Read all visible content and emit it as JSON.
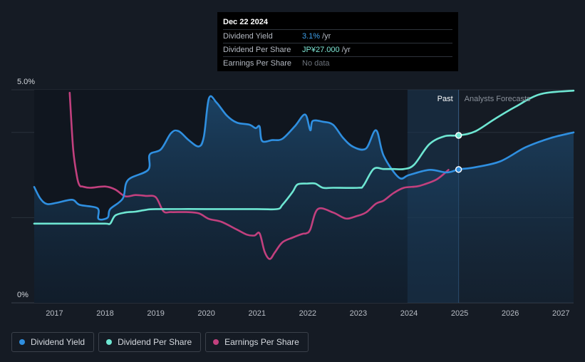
{
  "tooltip": {
    "date": "Dec 22 2024",
    "rows": [
      {
        "label": "Dividend Yield",
        "value": "3.1%",
        "unit": "/yr"
      },
      {
        "label": "Dividend Per Share",
        "value": "JP¥27.000",
        "unit": "/yr"
      },
      {
        "label": "Earnings Per Share",
        "value": "No data",
        "unit": ""
      }
    ]
  },
  "legend": [
    {
      "label": "Dividend Yield",
      "color": "#2f8fe0"
    },
    {
      "label": "Dividend Per Share",
      "color": "#6ee6d2"
    },
    {
      "label": "Earnings Per Share",
      "color": "#c2407e"
    }
  ],
  "chart_data": {
    "type": "line",
    "y_label_top": "5.0%",
    "y_label_bottom": "0%",
    "ylim": [
      0,
      5.0
    ],
    "xlim": [
      2016.6,
      2027.25
    ],
    "x_ticks": [
      "2017",
      "2018",
      "2019",
      "2020",
      "2021",
      "2022",
      "2023",
      "2024",
      "2025",
      "2026",
      "2027"
    ],
    "past_label": "Past",
    "forecast_label": "Analysts Forecasts",
    "forecast_start": 2023.97,
    "past_end": 2024.98,
    "series": [
      {
        "name": "Dividend Yield",
        "color": "#2f8fe0",
        "x": [
          2016.6,
          2016.72,
          2016.85,
          2017.05,
          2017.35,
          2017.5,
          2017.85,
          2017.87,
          2018.05,
          2018.1,
          2018.35,
          2018.45,
          2018.85,
          2018.88,
          2019.1,
          2019.3,
          2019.45,
          2019.65,
          2019.85,
          2019.95,
          2020.05,
          2020.2,
          2020.4,
          2020.6,
          2020.85,
          2020.97,
          2021.05,
          2021.1,
          2021.3,
          2021.5,
          2021.75,
          2021.95,
          2022.05,
          2022.1,
          2022.3,
          2022.5,
          2022.7,
          2022.9,
          2023.15,
          2023.35,
          2023.5,
          2023.8,
          2024.0,
          2024.4,
          2024.75,
          2024.98,
          2025.3,
          2025.8,
          2026.3,
          2026.8,
          2027.25
        ],
        "y": [
          2.72,
          2.45,
          2.32,
          2.35,
          2.42,
          2.3,
          2.22,
          1.97,
          2.0,
          2.2,
          2.45,
          2.88,
          3.12,
          3.48,
          3.6,
          3.98,
          4.03,
          3.82,
          3.67,
          3.9,
          4.8,
          4.7,
          4.4,
          4.23,
          4.18,
          4.1,
          4.14,
          3.8,
          3.82,
          3.85,
          4.15,
          4.42,
          4.05,
          4.27,
          4.25,
          4.18,
          3.87,
          3.66,
          3.62,
          4.05,
          3.45,
          2.94,
          3.0,
          3.12,
          3.06,
          3.13,
          3.18,
          3.32,
          3.65,
          3.87,
          4.0
        ]
      },
      {
        "name": "Dividend Per Share",
        "color": "#6ee6d2",
        "x": [
          2016.6,
          2017.0,
          2017.5,
          2018.0,
          2018.1,
          2018.2,
          2018.4,
          2018.6,
          2018.8,
          2019.0,
          2020.0,
          2021.0,
          2021.4,
          2021.5,
          2021.7,
          2021.8,
          2022.0,
          2022.15,
          2022.3,
          2022.5,
          2023.0,
          2023.1,
          2023.3,
          2023.5,
          2023.7,
          2023.9,
          2024.1,
          2024.4,
          2024.7,
          2024.98,
          2025.3,
          2025.7,
          2026.1,
          2026.6,
          2027.25
        ],
        "y": [
          1.86,
          1.86,
          1.86,
          1.86,
          1.86,
          2.05,
          2.12,
          2.14,
          2.18,
          2.2,
          2.2,
          2.2,
          2.2,
          2.3,
          2.6,
          2.78,
          2.8,
          2.8,
          2.7,
          2.7,
          2.7,
          2.75,
          3.14,
          3.14,
          3.14,
          3.14,
          3.24,
          3.72,
          3.91,
          3.93,
          4.02,
          4.32,
          4.6,
          4.9,
          4.98
        ]
      },
      {
        "name": "Earnings Per Share",
        "color": "#c2407e",
        "x": [
          2017.3,
          2017.37,
          2017.45,
          2017.5,
          2017.55,
          2017.7,
          2018.0,
          2018.2,
          2018.4,
          2018.6,
          2018.8,
          2019.0,
          2019.15,
          2019.3,
          2019.6,
          2019.85,
          2020.05,
          2020.3,
          2020.6,
          2020.8,
          2020.95,
          2021.05,
          2021.15,
          2021.25,
          2021.35,
          2021.5,
          2021.7,
          2021.9,
          2021.97,
          2022.05,
          2022.2,
          2022.5,
          2022.75,
          2022.95,
          2023.15,
          2023.35,
          2023.5,
          2023.7,
          2023.9,
          2024.15,
          2024.3,
          2024.55,
          2024.78
        ],
        "y": [
          4.93,
          3.6,
          2.93,
          2.75,
          2.73,
          2.7,
          2.73,
          2.66,
          2.5,
          2.53,
          2.51,
          2.48,
          2.15,
          2.13,
          2.13,
          2.1,
          1.97,
          1.9,
          1.72,
          1.6,
          1.58,
          1.63,
          1.2,
          1.03,
          1.18,
          1.42,
          1.53,
          1.62,
          1.63,
          1.72,
          2.2,
          2.12,
          1.98,
          2.03,
          2.12,
          2.33,
          2.4,
          2.58,
          2.7,
          2.73,
          2.78,
          2.9,
          3.12
        ]
      }
    ],
    "markers": [
      {
        "series": "Dividend Per Share",
        "x": 2024.98,
        "y": 3.93
      },
      {
        "series": "Dividend Yield",
        "x": 2024.98,
        "y": 3.13
      }
    ]
  }
}
